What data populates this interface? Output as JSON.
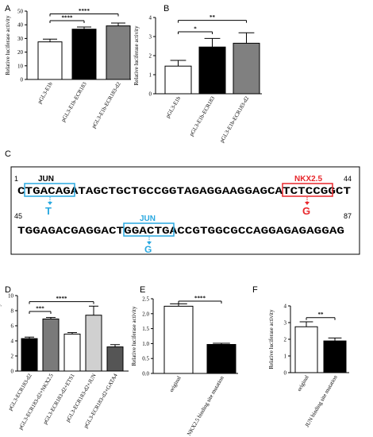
{
  "panels": {
    "A": "A",
    "B": "B",
    "C": "C",
    "D": "D",
    "E": "E",
    "F": "F"
  },
  "chart_data": [
    {
      "panel": "A",
      "type": "bar",
      "ylabel": "Relative luciferase activity",
      "ylim": [
        0,
        50
      ],
      "yticks": [
        "0",
        "10",
        "20",
        "30",
        "40",
        "50"
      ],
      "categories": [
        "pGL3-E1b",
        "pGL3-E1b-ECR183",
        "pGL3-E1b-ECR183-d2"
      ],
      "values": [
        27.5,
        36.8,
        39.2
      ],
      "errors": [
        2.0,
        1.6,
        2.1
      ],
      "fills": [
        "#ffffff",
        "#000000",
        "#808080"
      ],
      "sig": [
        {
          "label": "****",
          "from": 0,
          "to": 1,
          "y": 43
        },
        {
          "label": "****",
          "from": 0,
          "to": 2,
          "y": 48
        }
      ]
    },
    {
      "panel": "B",
      "type": "bar",
      "ylabel": "Relative luciferase activity",
      "ylim": [
        0,
        4
      ],
      "yticks": [
        "0",
        "1",
        "2",
        "3",
        "4"
      ],
      "categories": [
        "pGL3-E1b",
        "pGL3-E1b-ECR183",
        "pGL3-E1b-ECR183-d2"
      ],
      "values": [
        1.45,
        2.45,
        2.65
      ],
      "errors": [
        0.3,
        0.45,
        0.55
      ],
      "fills": [
        "#ffffff",
        "#000000",
        "#808080"
      ],
      "sig": [
        {
          "label": "*",
          "from": 0,
          "to": 1,
          "y": 3.25
        },
        {
          "label": "**",
          "from": 0,
          "to": 2,
          "y": 3.85
        }
      ]
    },
    {
      "panel": "D",
      "type": "bar",
      "ylabel": "Relative luciferase activity",
      "ylim": [
        0,
        10
      ],
      "yticks": [
        "0",
        "2",
        "4",
        "6",
        "8",
        "10"
      ],
      "categories": [
        "pGL3-ECR183-d2",
        "pGL3-ECR183-d2+NKX2.5",
        "pGL3-ECR183-d2+ETS1",
        "pGL3-ECR183-d2+JUN",
        "pGL3-ECR183-d2+GATA4"
      ],
      "values": [
        4.3,
        6.9,
        4.9,
        7.4,
        3.2
      ],
      "errors": [
        0.2,
        0.2,
        0.2,
        1.2,
        0.3
      ],
      "fills": [
        "#000000",
        "#7a7a7a",
        "#ffffff",
        "#d0d0d0",
        "#555555"
      ],
      "sig": [
        {
          "label": "***",
          "from": 0,
          "to": 1,
          "y": 7.9
        },
        {
          "label": "****",
          "from": 0,
          "to": 3,
          "y": 9.2
        }
      ]
    },
    {
      "panel": "E",
      "type": "bar",
      "ylabel": "Relative luciferase activity",
      "ylim": [
        0,
        2.5
      ],
      "yticks": [
        "0.0",
        "0.5",
        "1.0",
        "1.5",
        "2.0",
        "2.5"
      ],
      "categories": [
        "original",
        "NKX2.5 binding site mutation"
      ],
      "values": [
        2.25,
        0.97
      ],
      "errors": [
        0.08,
        0.04
      ],
      "fills": [
        "#ffffff",
        "#000000"
      ],
      "sig": [
        {
          "label": "****",
          "from": 0,
          "to": 1,
          "y": 2.42
        }
      ]
    },
    {
      "panel": "F",
      "type": "bar",
      "ylabel": "Relative luciferase activity",
      "ylim": [
        0,
        4
      ],
      "yticks": [
        "0",
        "1",
        "2",
        "3",
        "4"
      ],
      "categories": [
        "original",
        "JUN binding site mutation"
      ],
      "values": [
        2.75,
        1.9
      ],
      "errors": [
        0.3,
        0.18
      ],
      "fills": [
        "#ffffff",
        "#000000"
      ],
      "sig": [
        {
          "label": "**",
          "from": 0,
          "to": 1,
          "y": 3.3
        }
      ]
    }
  ],
  "sequence": {
    "start1": "1",
    "end1": "44",
    "start2": "45",
    "end2": "87",
    "line1": "CTGACAGATAGCTGCTGCCGGTAGAGGAAGGAGCATCTCCGGCT",
    "line2": "TGGAGACGAGGACTGGACTGACCGTGGCGCCAGGAGAGAGGAG",
    "jun_label_1": "JUN",
    "jun_mut_1": "T",
    "nkx_label": "NKX2.5",
    "nkx_mut": "G",
    "jun_label_2": "JUN",
    "jun_mut_2": "G",
    "blue": "#29a8e0",
    "red": "#e8262b"
  }
}
